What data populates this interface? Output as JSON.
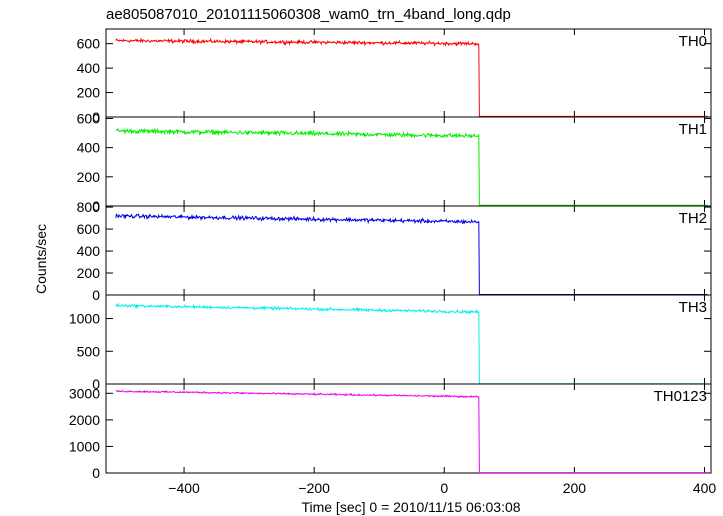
{
  "chart_data": {
    "type": "line",
    "title": "ae805087010_20101115060308_wam0_trn_4band_long.qdp",
    "xlabel": "Time [sec] 0 = 2010/11/15 06:03:08",
    "ylabel": "Counts/sec",
    "xlim": [
      -520,
      410
    ],
    "x_ticks": [
      -400,
      -200,
      0,
      200,
      400
    ],
    "x_tick_labels": [
      "−400",
      "−200",
      "0",
      "200",
      "400"
    ],
    "data_start_x": -505,
    "data_end_x": 405,
    "step_x": 53,
    "panels": [
      {
        "name": "TH0",
        "color": "#ff0000",
        "ylim": [
          0,
          720
        ],
        "y_ticks": [
          0,
          200,
          400,
          600
        ],
        "level_start": 625,
        "level_end": 600,
        "noise": 20,
        "post_level": 5
      },
      {
        "name": "TH1",
        "color": "#00ee00",
        "ylim": [
          0,
          610
        ],
        "y_ticks": [
          0,
          200,
          400,
          600
        ],
        "level_start": 515,
        "level_end": 480,
        "noise": 22,
        "post_level": 5
      },
      {
        "name": "TH2",
        "color": "#0000dd",
        "ylim": [
          0,
          810
        ],
        "y_ticks": [
          0,
          200,
          400,
          600,
          800
        ],
        "level_start": 720,
        "level_end": 665,
        "noise": 25,
        "post_level": 5
      },
      {
        "name": "TH3",
        "color": "#00eeee",
        "ylim": [
          0,
          1360
        ],
        "y_ticks": [
          0,
          500,
          1000
        ],
        "level_start": 1200,
        "level_end": 1100,
        "noise": 30,
        "post_level": 5
      },
      {
        "name": "TH0123",
        "color": "#ee00ee",
        "ylim": [
          0,
          3350
        ],
        "y_ticks": [
          0,
          1000,
          2000,
          3000
        ],
        "level_start": 3080,
        "level_end": 2870,
        "noise": 45,
        "post_level": 15
      }
    ]
  }
}
